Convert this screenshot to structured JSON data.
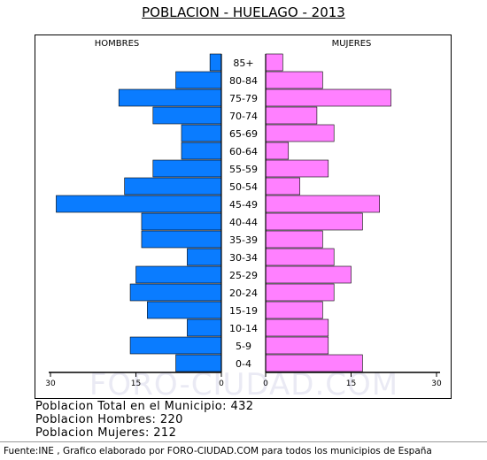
{
  "title": "POBLACION - HUELAGO - 2013",
  "watermark": "FORO-CIUDAD.COM",
  "stats": {
    "total": "Poblacion Total en el Municipio: 432",
    "hombres": "Poblacion Hombres: 220",
    "mujeres": "Poblacion Mujeres: 212"
  },
  "footer": "Fuente:INE , Grafico elaborado por FORO-CIUDAD.COM para todos los municipios de España",
  "colors": {
    "male": "#0a7cff",
    "female": "#ff80ff"
  },
  "chart_data": {
    "type": "bar",
    "orientation": "horizontal-population-pyramid",
    "left_label": "HOMBRES",
    "right_label": "MUJERES",
    "categories": [
      "85+",
      "80-84",
      "75-79",
      "70-74",
      "65-69",
      "60-64",
      "55-59",
      "50-54",
      "45-49",
      "40-44",
      "35-39",
      "30-34",
      "25-29",
      "20-24",
      "15-19",
      "10-14",
      "5-9",
      "0-4"
    ],
    "series": [
      {
        "name": "HOMBRES",
        "values": [
          2,
          8,
          18,
          12,
          7,
          7,
          12,
          17,
          29,
          14,
          14,
          6,
          15,
          16,
          13,
          6,
          16,
          8
        ]
      },
      {
        "name": "MUJERES",
        "values": [
          3,
          10,
          22,
          9,
          12,
          4,
          11,
          6,
          20,
          17,
          10,
          12,
          15,
          12,
          10,
          11,
          11,
          17
        ]
      }
    ],
    "x_ticks_left": [
      "30",
      "15",
      "0"
    ],
    "x_ticks_right": [
      "0",
      "15",
      "30"
    ],
    "xlim": [
      0,
      30
    ]
  }
}
